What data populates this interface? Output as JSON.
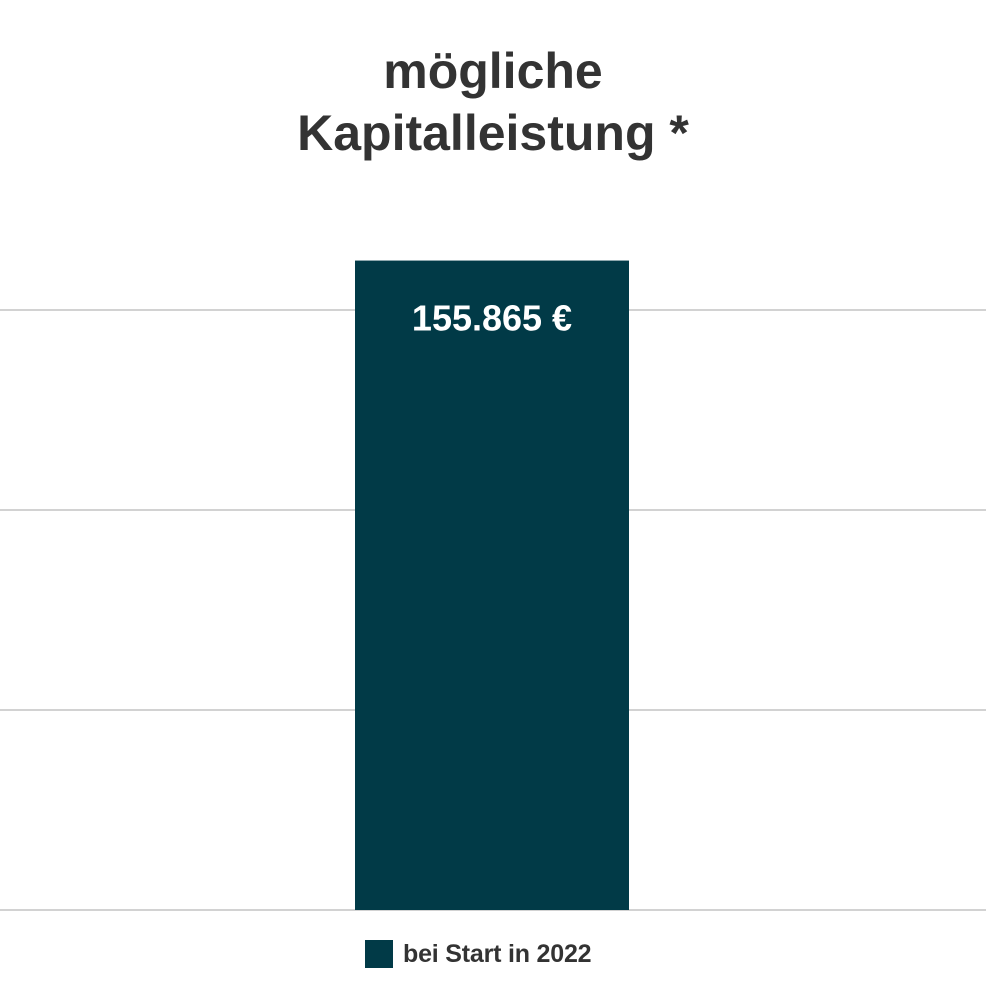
{
  "chart_data": {
    "type": "bar",
    "title_lines": [
      "mögliche",
      "Kapitalleistung *"
    ],
    "categories": [
      "bei Start in 2022"
    ],
    "series": [
      {
        "name": "bei Start in 2022",
        "values": [
          155865
        ],
        "data_labels": [
          "155.865 €"
        ],
        "color": "#013A47"
      }
    ],
    "ylim": [
      0,
      144000
    ],
    "y_gridlines": [
      0,
      48000,
      96000,
      144000
    ],
    "grid": true,
    "legend_position": "bottom",
    "xlabel": "",
    "ylabel": ""
  },
  "colors": {
    "bar": "#013A47",
    "gridline": "#A6A6A6",
    "title": "#333333",
    "data_label": "#FFFFFF"
  }
}
